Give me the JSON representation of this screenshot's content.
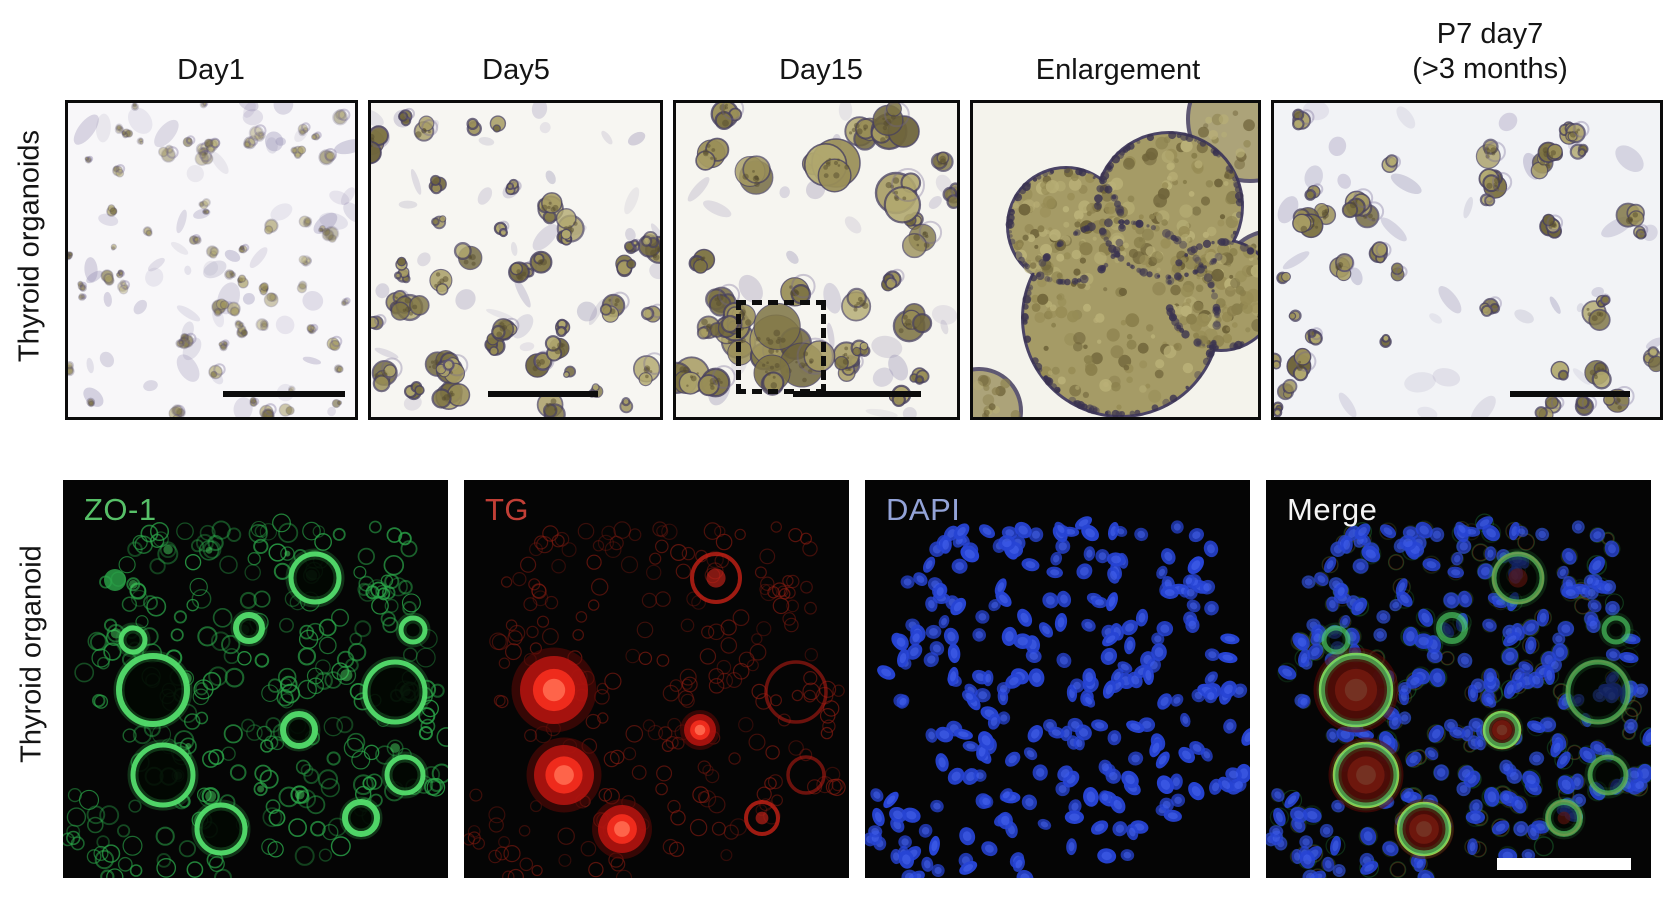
{
  "top_row": {
    "side_label": "Thyroid organoids",
    "panels": [
      {
        "label": "Day1",
        "scale_bar": true
      },
      {
        "label": "Day5",
        "scale_bar": true
      },
      {
        "label": "Day15",
        "scale_bar": true,
        "inset_box": true
      },
      {
        "label": "Enlargement",
        "scale_bar": false
      },
      {
        "label": "P7 day7",
        "label_line2": "(>3 months)",
        "scale_bar": true
      }
    ],
    "scale_bar_color": "#0c0c0c"
  },
  "bottom_row": {
    "side_label": "Thyroid organoid",
    "panels": [
      {
        "label": "ZO-1",
        "label_color": "#57c068"
      },
      {
        "label": "TG",
        "label_color": "#c23f36"
      },
      {
        "label": "DAPI",
        "label_color": "#93a3d8"
      },
      {
        "label": "Merge",
        "label_color": "#f5f5f5",
        "scale_bar": true
      }
    ],
    "scale_bar_color": "#ffffff"
  },
  "palette": {
    "brightfield_background": "#f6f5f4",
    "organoid_fill": "#9a8f58",
    "organoid_outline": "#463f5f",
    "zo1_green": "#35c452",
    "tg_red": "#e3251d",
    "dapi_blue": "#2e4fe0",
    "fluorescence_background": "#050505"
  }
}
